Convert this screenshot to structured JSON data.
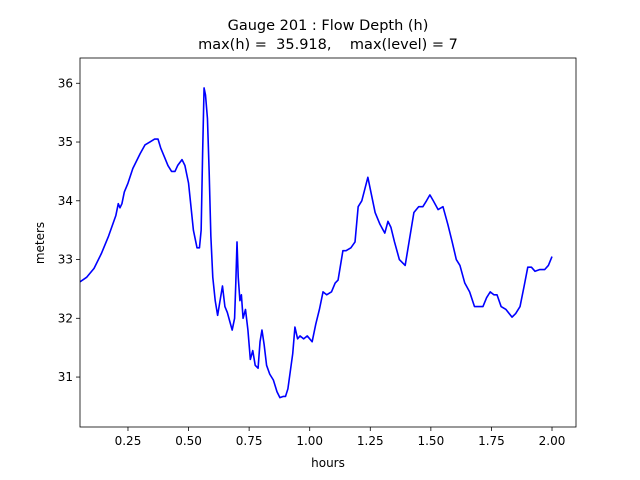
{
  "chart_data": {
    "type": "line",
    "title": "Gauge 201 : Flow Depth (h)",
    "subtitle": "max(h) =  35.918,    max(level) = 7",
    "xlabel": "hours",
    "ylabel": "meters",
    "xlim": [
      0.052,
      2.099
    ],
    "ylim": [
      30.15,
      36.43
    ],
    "xticks": [
      0.25,
      {
        "value": 0.5,
        "label": "0.50"
      },
      0.75,
      {
        "value": 1.0,
        "label": "1.00"
      },
      1.25,
      {
        "value": 1.5,
        "label": "1.50"
      },
      1.75,
      {
        "value": 2.0,
        "label": "2.00"
      }
    ],
    "yticks": [
      31,
      32,
      33,
      34,
      35,
      36
    ],
    "grid": false,
    "x": [
      0.052,
      0.08,
      0.11,
      0.14,
      0.17,
      0.2,
      0.21,
      0.217,
      0.225,
      0.235,
      0.25,
      0.27,
      0.3,
      0.32,
      0.34,
      0.36,
      0.374,
      0.385,
      0.4,
      0.415,
      0.43,
      0.444,
      0.455,
      0.473,
      0.485,
      0.5,
      0.51,
      0.52,
      0.535,
      0.545,
      0.552,
      0.558,
      0.564,
      0.57,
      0.578,
      0.585,
      0.592,
      0.6,
      0.61,
      0.62,
      0.63,
      0.64,
      0.65,
      0.66,
      0.67,
      0.68,
      0.69,
      0.695,
      0.7,
      0.705,
      0.712,
      0.718,
      0.725,
      0.735,
      0.745,
      0.755,
      0.765,
      0.775,
      0.787,
      0.795,
      0.803,
      0.812,
      0.822,
      0.835,
      0.85,
      0.865,
      0.877,
      0.89,
      0.9,
      0.91,
      0.92,
      0.93,
      0.939,
      0.95,
      0.96,
      0.975,
      0.99,
      1.01,
      1.025,
      1.04,
      1.055,
      1.07,
      1.09,
      1.105,
      1.117,
      1.137,
      1.15,
      1.17,
      1.187,
      1.2,
      1.215,
      1.24,
      1.255,
      1.27,
      1.29,
      1.31,
      1.323,
      1.335,
      1.35,
      1.37,
      1.394,
      1.41,
      1.43,
      1.45,
      1.467,
      1.482,
      1.496,
      1.51,
      1.53,
      1.55,
      1.57,
      1.588,
      1.605,
      1.62,
      1.64,
      1.66,
      1.68,
      1.7,
      1.715,
      1.73,
      1.745,
      1.76,
      1.773,
      1.79,
      1.81,
      1.835,
      1.85,
      1.868,
      1.885,
      1.9,
      1.915,
      1.93,
      1.95,
      1.97,
      1.985,
      2.0
    ],
    "series": [
      {
        "name": "h",
        "color": "#0000ff",
        "values": [
          32.62,
          32.7,
          32.85,
          33.1,
          33.4,
          33.75,
          33.95,
          33.88,
          33.95,
          34.15,
          34.3,
          34.55,
          34.8,
          34.95,
          35.0,
          35.05,
          35.05,
          34.9,
          34.75,
          34.6,
          34.5,
          34.5,
          34.6,
          34.7,
          34.6,
          34.3,
          33.9,
          33.5,
          33.2,
          33.2,
          33.5,
          34.8,
          35.92,
          35.8,
          35.4,
          34.5,
          33.4,
          32.7,
          32.3,
          32.05,
          32.3,
          32.55,
          32.2,
          32.1,
          31.95,
          31.8,
          32.0,
          32.6,
          33.3,
          32.7,
          32.3,
          32.4,
          32.0,
          32.15,
          31.8,
          31.3,
          31.45,
          31.2,
          31.15,
          31.6,
          31.8,
          31.55,
          31.2,
          31.05,
          30.95,
          30.75,
          30.65,
          30.67,
          30.67,
          30.8,
          31.1,
          31.4,
          31.85,
          31.65,
          31.7,
          31.65,
          31.7,
          31.6,
          31.9,
          32.15,
          32.45,
          32.4,
          32.45,
          32.6,
          32.65,
          33.15,
          33.15,
          33.2,
          33.3,
          33.9,
          34.0,
          34.4,
          34.1,
          33.8,
          33.6,
          33.45,
          33.65,
          33.55,
          33.3,
          33.0,
          32.9,
          33.3,
          33.8,
          33.9,
          33.9,
          34.0,
          34.1,
          34.0,
          33.85,
          33.9,
          33.6,
          33.3,
          33.0,
          32.9,
          32.6,
          32.45,
          32.2,
          32.2,
          32.2,
          32.35,
          32.45,
          32.4,
          32.4,
          32.2,
          32.15,
          32.02,
          32.08,
          32.2,
          32.55,
          32.87,
          32.87,
          32.8,
          32.83,
          32.83,
          32.9,
          33.05
        ]
      }
    ]
  }
}
